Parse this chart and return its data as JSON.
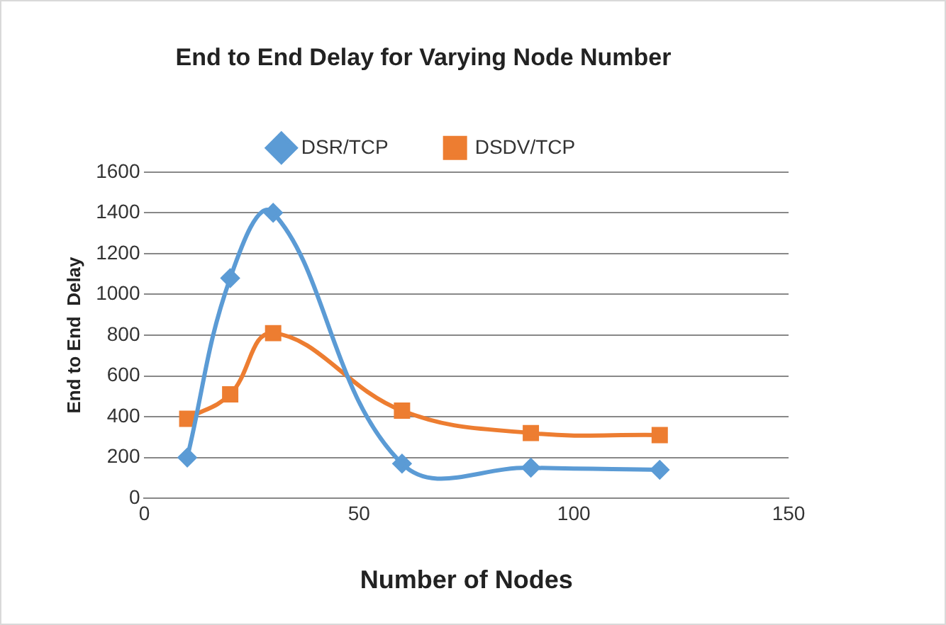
{
  "chart_data": {
    "type": "line",
    "title": "End to End Delay for Varying Node Number",
    "xlabel": "Number of Nodes",
    "ylabel": "End to End  Delay",
    "x": [
      10,
      20,
      30,
      60,
      90,
      120
    ],
    "series": [
      {
        "name": "DSR/TCP",
        "color": "#5b9bd5",
        "marker": "diamond",
        "values": [
          200,
          1080,
          1400,
          170,
          150,
          140
        ]
      },
      {
        "name": "DSDV/TCP",
        "color": "#ed7d31",
        "marker": "square",
        "values": [
          390,
          510,
          810,
          430,
          320,
          310
        ]
      }
    ],
    "xlim": [
      0,
      150
    ],
    "xticks": [
      0,
      50,
      100,
      150
    ],
    "ylim": [
      0,
      1600
    ],
    "yticks": [
      0,
      200,
      400,
      600,
      800,
      1000,
      1200,
      1400,
      1600
    ],
    "grid": "y",
    "legend": "top"
  }
}
